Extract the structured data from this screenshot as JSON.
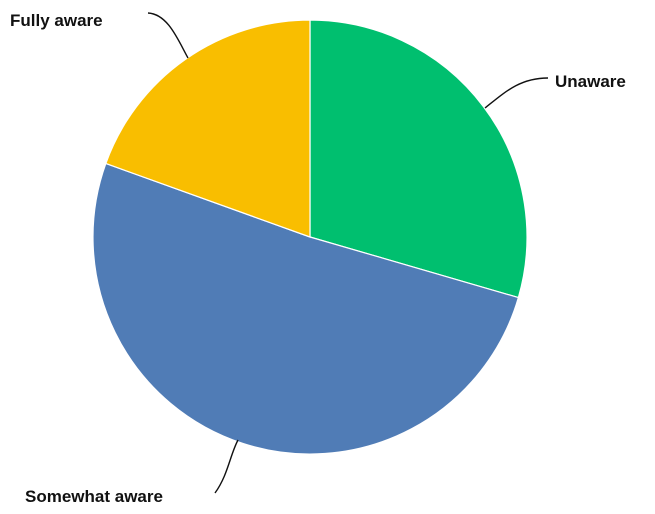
{
  "chart_data": {
    "type": "pie",
    "start_angle_deg": 0,
    "direction": "clockwise",
    "slices": [
      {
        "label": "Unaware",
        "value": 29.5,
        "color": "#00BF6F"
      },
      {
        "label": "Somewhat aware",
        "value": 51.0,
        "color": "#507CB6"
      },
      {
        "label": "Fully aware",
        "value": 19.5,
        "color": "#F9BE00"
      }
    ],
    "labels_outside": true,
    "legend": "none"
  }
}
